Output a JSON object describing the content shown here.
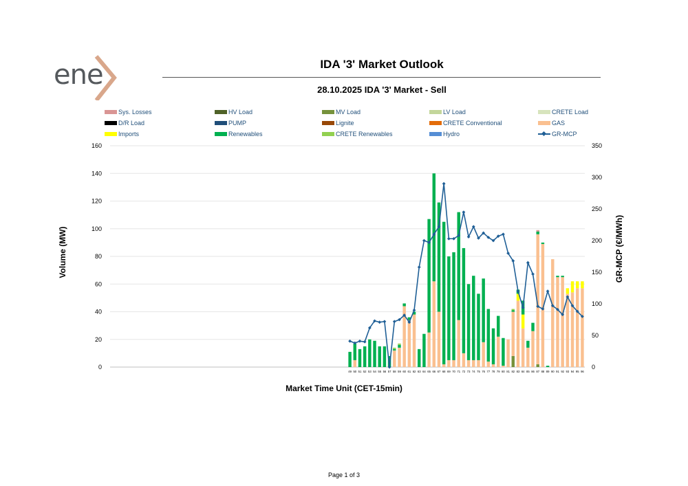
{
  "brand": {
    "logo_text": "ene",
    "logo_accent_color": "#d9a78b",
    "logo_text_color": "#55595d"
  },
  "page": {
    "title": "IDA '3' Market Outlook",
    "footer": "Page 1 of 3"
  },
  "chart_data": {
    "type": "bar",
    "title": "28.10.2025  IDA '3' Market - Sell",
    "xlabel": "Market Time Unit (CET-15min)",
    "ylabel": "Volume (MW)",
    "y2label": "GR-MCP (€/MWh)",
    "ylim": [
      0,
      160
    ],
    "y2lim": [
      0,
      350
    ],
    "yticks": [
      "0",
      "20",
      "40",
      "60",
      "80",
      "100",
      "120",
      "140",
      "160"
    ],
    "y2ticks": [
      "0",
      "50",
      "100",
      "150",
      "200",
      "250",
      "300",
      "350"
    ],
    "stacked": true,
    "grid": true,
    "legend_position": "top",
    "categories": [
      "49",
      "50",
      "51",
      "52",
      "53",
      "54",
      "55",
      "56",
      "57",
      "58",
      "59",
      "60",
      "61",
      "62",
      "63",
      "64",
      "65",
      "66",
      "67",
      "68",
      "69",
      "70",
      "71",
      "72",
      "73",
      "74",
      "75",
      "76",
      "77",
      "78",
      "79",
      "80",
      "81",
      "82",
      "83",
      "84",
      "85",
      "86",
      "87",
      "88",
      "89",
      "90",
      "91",
      "92",
      "93",
      "94",
      "95",
      "96"
    ],
    "legend": [
      {
        "name": "Sys. Losses",
        "color": "#d99594",
        "kind": "bar"
      },
      {
        "name": "HV Load",
        "color": "#4f6228",
        "kind": "bar"
      },
      {
        "name": "MV Load",
        "color": "#76923c",
        "kind": "bar"
      },
      {
        "name": "LV Load",
        "color": "#c3d69b",
        "kind": "bar"
      },
      {
        "name": "CRETE Load",
        "color": "#d7e4bd",
        "kind": "bar"
      },
      {
        "name": "D/R Load",
        "color": "#000000",
        "kind": "bar"
      },
      {
        "name": "PUMP",
        "color": "#1f4e79",
        "kind": "bar"
      },
      {
        "name": "Lignite",
        "color": "#984807",
        "kind": "bar"
      },
      {
        "name": "CRETE Conventional",
        "color": "#e36c09",
        "kind": "bar"
      },
      {
        "name": "GAS",
        "color": "#fac090",
        "kind": "bar"
      },
      {
        "name": "Imports",
        "color": "#ffff00",
        "kind": "bar"
      },
      {
        "name": "Renewables",
        "color": "#00b050",
        "kind": "bar"
      },
      {
        "name": "CRETE Renewables",
        "color": "#92d050",
        "kind": "bar"
      },
      {
        "name": "Hydro",
        "color": "#558ed5",
        "kind": "bar"
      },
      {
        "name": "GR-MCP",
        "color": "#1f5f96",
        "kind": "line"
      }
    ],
    "series": [
      {
        "name": "MV Load",
        "color": "#76923c",
        "values": [
          0,
          0,
          0,
          0,
          0,
          0,
          0,
          0,
          0,
          0,
          0,
          0,
          0,
          0,
          0,
          0,
          0,
          0,
          0,
          0,
          0,
          0,
          0,
          0,
          0,
          0,
          0,
          0,
          0,
          0,
          0,
          0,
          0,
          8,
          0,
          0,
          0,
          0,
          2,
          0,
          0,
          0,
          0,
          0,
          0,
          0,
          0,
          0
        ]
      },
      {
        "name": "GAS",
        "color": "#fac090",
        "values": [
          0,
          5,
          0,
          0,
          0,
          0,
          0,
          0,
          0,
          12,
          14,
          44,
          34,
          38,
          0,
          0,
          25,
          62,
          40,
          2,
          5,
          5,
          34,
          10,
          5,
          5,
          5,
          18,
          4,
          2,
          22,
          1,
          20,
          32,
          48,
          28,
          14,
          26,
          94,
          89,
          0,
          78,
          65,
          65,
          53,
          54,
          57,
          57
        ]
      },
      {
        "name": "Imports",
        "color": "#ffff00",
        "values": [
          0,
          0,
          0,
          0,
          0,
          0,
          0,
          0,
          0,
          0,
          0,
          0,
          0,
          0,
          0,
          0,
          0,
          0,
          0,
          0,
          0,
          0,
          0,
          0,
          0,
          0,
          0,
          0,
          0,
          0,
          0,
          0,
          0,
          0,
          5,
          10,
          0,
          0,
          0,
          0,
          0,
          0,
          0,
          0,
          4,
          8,
          5,
          5
        ]
      },
      {
        "name": "Renewables",
        "color": "#00b050",
        "values": [
          11,
          12,
          13,
          15,
          20,
          19,
          15,
          15,
          8,
          1,
          2,
          2,
          2,
          2,
          13,
          24,
          82,
          78,
          79,
          103,
          75,
          78,
          78,
          76,
          55,
          61,
          48,
          46,
          38,
          26,
          15,
          20,
          0,
          1,
          3,
          10,
          5,
          6,
          2,
          1,
          1,
          0,
          1,
          1,
          0,
          0,
          0,
          0
        ]
      },
      {
        "name": "CRETE Renewables",
        "color": "#92d050",
        "values": [
          0,
          0,
          0,
          0,
          0,
          0,
          0,
          0,
          0,
          1,
          1,
          0,
          0,
          0,
          0,
          0,
          0,
          0,
          0,
          0,
          0,
          0,
          0,
          0,
          0,
          0,
          0,
          0,
          0,
          0,
          0,
          0,
          0,
          1,
          0,
          0,
          0,
          0,
          0,
          0,
          0,
          0,
          0,
          0,
          0,
          0,
          0,
          0
        ]
      },
      {
        "name": "Sys. Losses",
        "color": "#d99594",
        "values": [
          0,
          0,
          0,
          0,
          0,
          0,
          0,
          0,
          0,
          0,
          0,
          0,
          0,
          0,
          0,
          0,
          0,
          0,
          0,
          0,
          0,
          0,
          0,
          0,
          0,
          0,
          0,
          0,
          0,
          0,
          0,
          0,
          0,
          0,
          0,
          0,
          0,
          0,
          1,
          0,
          0,
          0,
          0,
          0,
          0,
          0,
          0,
          0
        ]
      }
    ],
    "line": {
      "name": "GR-MCP",
      "axis": "right",
      "color": "#1f5f96",
      "values": [
        41,
        38,
        41,
        40,
        62,
        73,
        71,
        72,
        0,
        72,
        75,
        82,
        71,
        90,
        158,
        200,
        197,
        210,
        222,
        290,
        203,
        203,
        208,
        245,
        206,
        222,
        204,
        212,
        205,
        200,
        207,
        210,
        180,
        168,
        120,
        94,
        165,
        147,
        96,
        92,
        120,
        97,
        91,
        83,
        111,
        97,
        88,
        80
      ]
    }
  }
}
